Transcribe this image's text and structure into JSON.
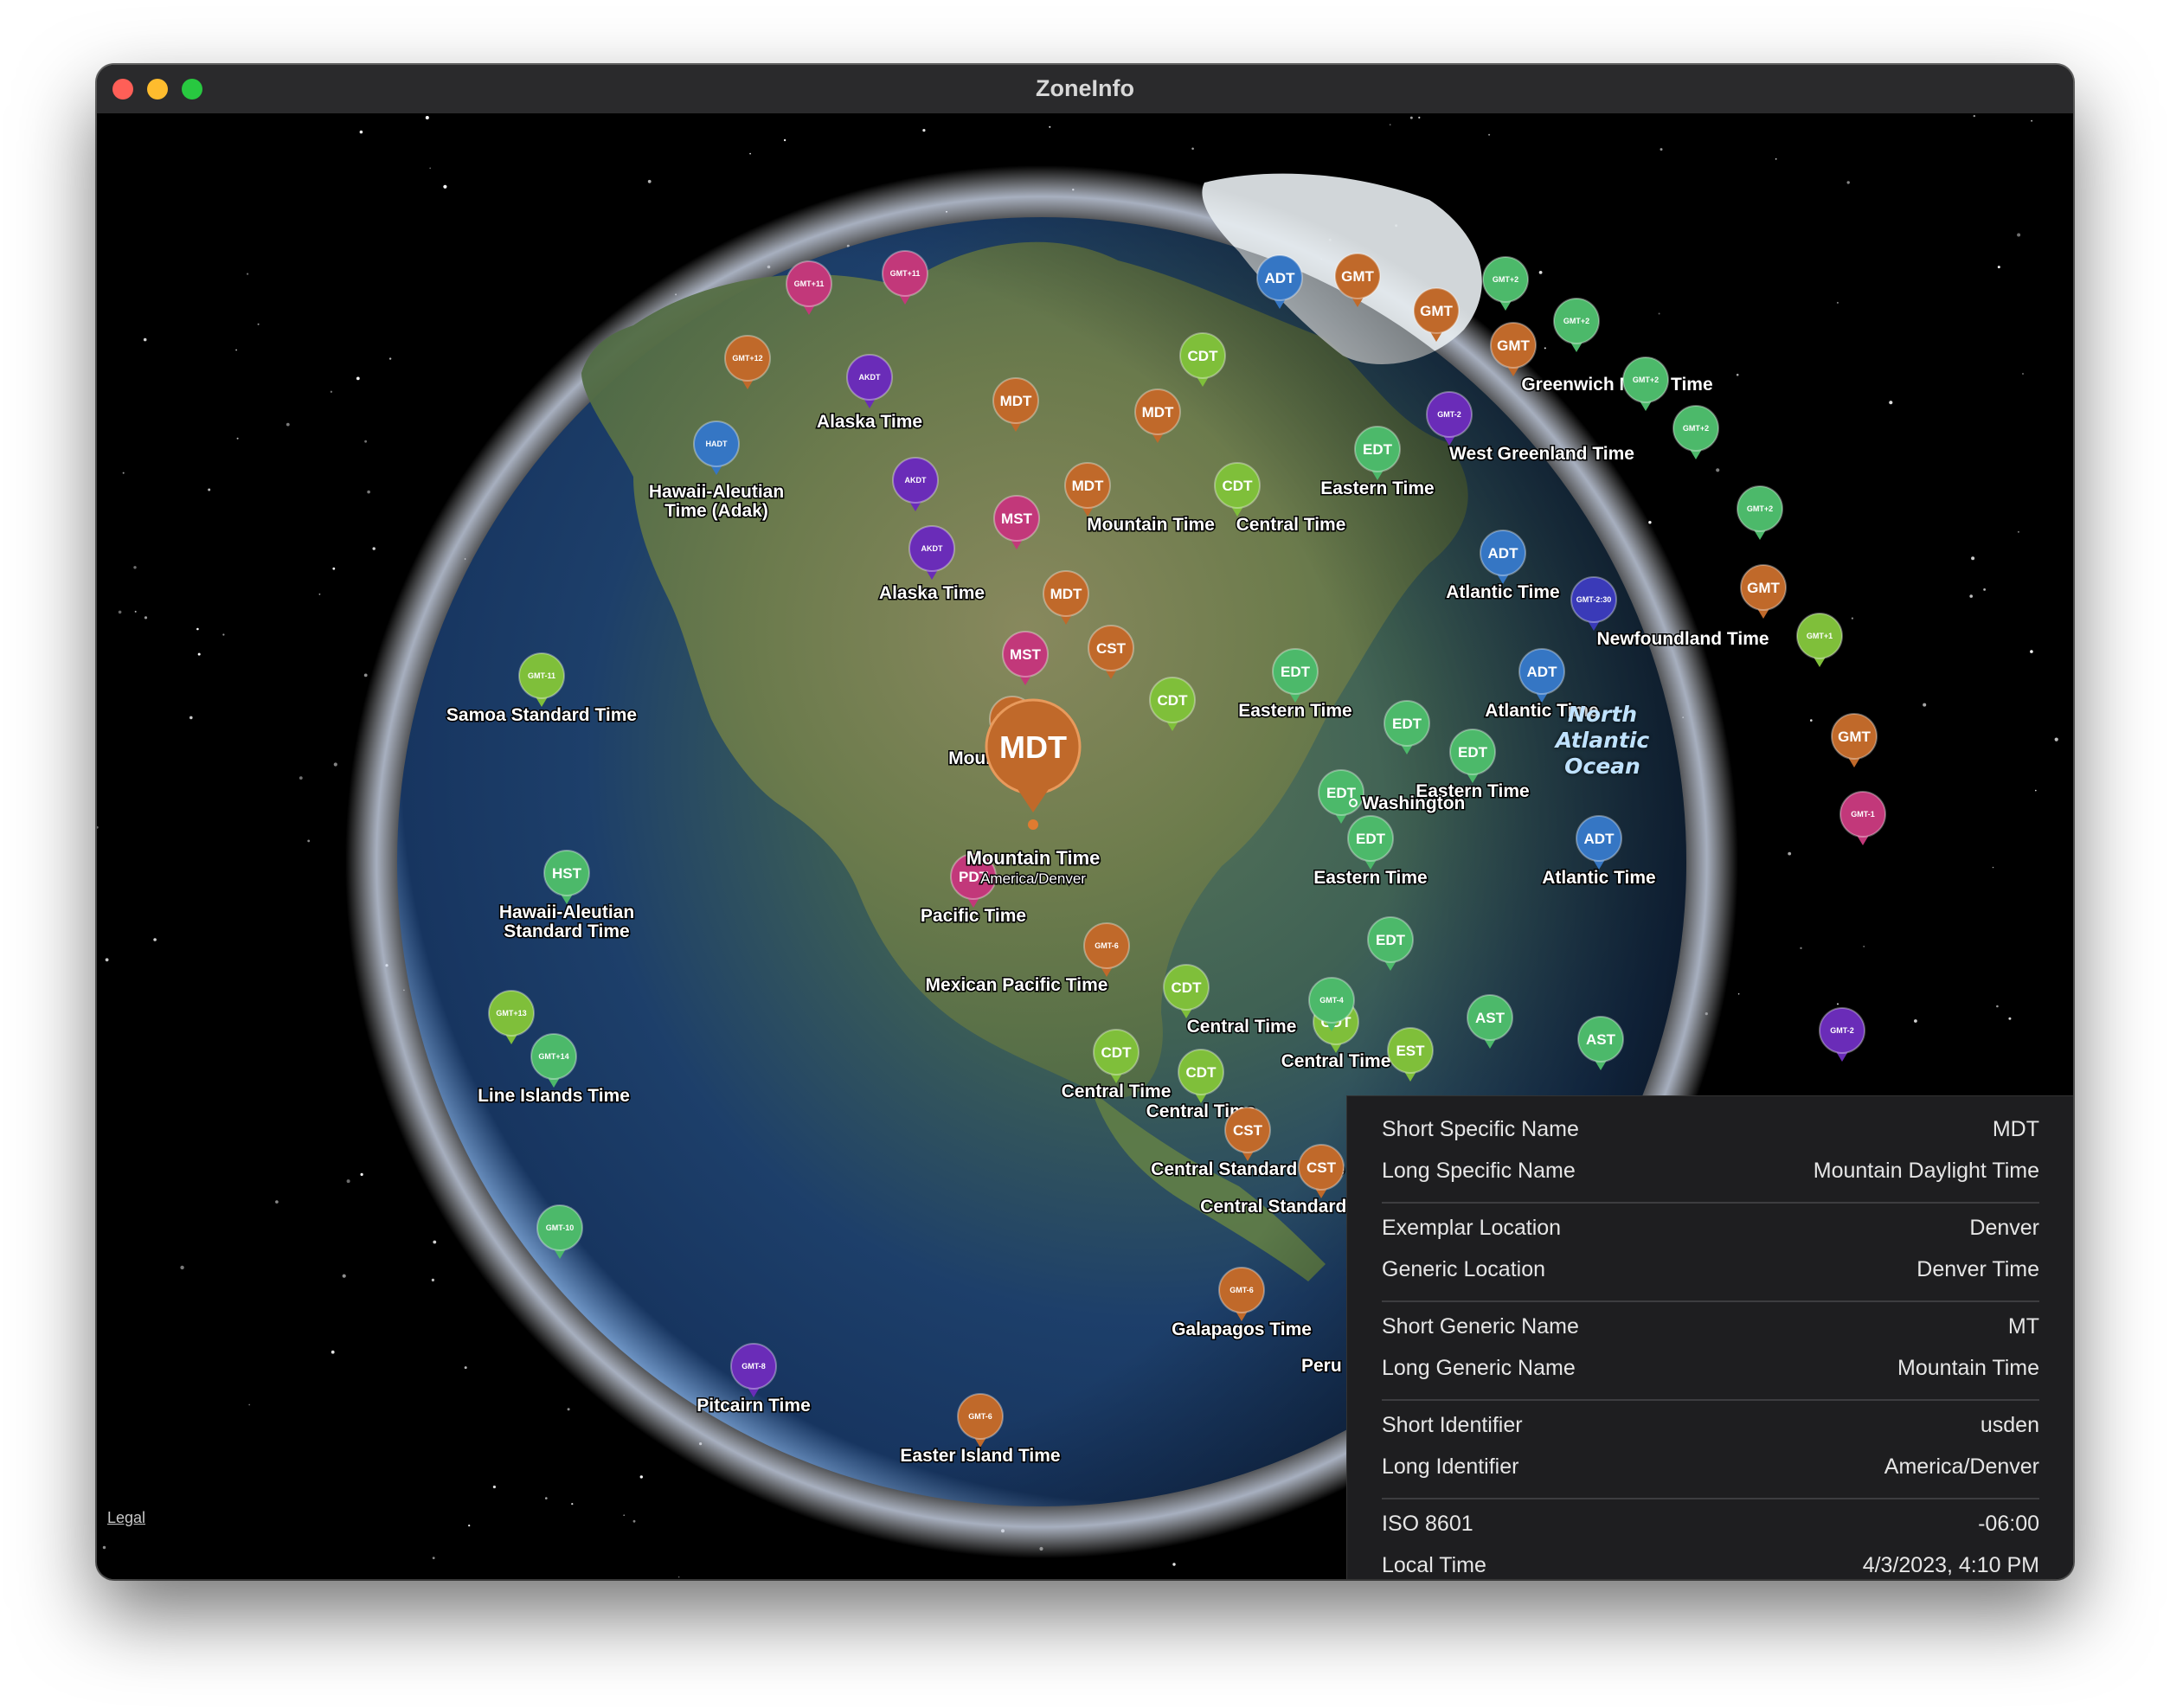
{
  "window": {
    "title": "ZoneInfo"
  },
  "map": {
    "legal_label": "Legal",
    "ocean_label": "North\nAtlantic\nOcean",
    "selected": {
      "abbr": "MDT",
      "title": "Mountain Time",
      "subtitle": "America/Denver"
    },
    "markers": [
      {
        "abbr": "GMT+11",
        "label": "",
        "color": "#c2387a",
        "small": true
      },
      {
        "abbr": "GMT+11",
        "label": "",
        "color": "#c2387a",
        "small": true
      },
      {
        "abbr": "GMT+12",
        "label": "",
        "color": "#c0692a",
        "small": true
      },
      {
        "abbr": "AKDT",
        "label": "Alaska Time",
        "color": "#6a2cb8",
        "small": true
      },
      {
        "abbr": "HADT",
        "label": "Hawaii-Aleutian\nTime (Adak)",
        "color": "#3576c4",
        "small": true
      },
      {
        "abbr": "AKDT",
        "label": "",
        "color": "#6a2cb8",
        "small": true
      },
      {
        "abbr": "AKDT",
        "label": "Alaska Time",
        "color": "#6a2cb8",
        "small": true
      },
      {
        "abbr": "MDT",
        "label": "",
        "color": "#c0692a"
      },
      {
        "abbr": "MDT",
        "label": "",
        "color": "#c0692a"
      },
      {
        "abbr": "MDT",
        "label": "Mountain Time",
        "color": "#c0692a"
      },
      {
        "abbr": "MST",
        "label": "",
        "color": "#c2387a"
      },
      {
        "abbr": "MDT",
        "label": "",
        "color": "#c0692a"
      },
      {
        "abbr": "MST",
        "label": "",
        "color": "#c2387a"
      },
      {
        "abbr": "CST",
        "label": "",
        "color": "#c0692a"
      },
      {
        "abbr": "CDT",
        "label": "",
        "color": "#7fbf3a"
      },
      {
        "abbr": "CDT",
        "label": "Central Time",
        "color": "#7fbf3a"
      },
      {
        "abbr": "CDT",
        "label": "",
        "color": "#7fbf3a"
      },
      {
        "abbr": "ADT",
        "label": "",
        "color": "#3576c4"
      },
      {
        "abbr": "GMT",
        "label": "",
        "color": "#c0692a"
      },
      {
        "abbr": "GMT",
        "label": "",
        "color": "#c0692a"
      },
      {
        "abbr": "GMT",
        "label": "Greenwich Mean Time",
        "color": "#c0692a"
      },
      {
        "abbr": "GMT+2",
        "label": "",
        "color": "#4cb96a",
        "small": true
      },
      {
        "abbr": "GMT+2",
        "label": "",
        "color": "#4cb96a",
        "small": true
      },
      {
        "abbr": "GMT+2",
        "label": "",
        "color": "#4cb96a",
        "small": true
      },
      {
        "abbr": "GMT+2",
        "label": "",
        "color": "#4cb96a",
        "small": true
      },
      {
        "abbr": "GMT+2",
        "label": "",
        "color": "#4cb96a",
        "small": true
      },
      {
        "abbr": "GMT-2",
        "label": "West Greenland Time",
        "color": "#6a2cb8",
        "small": true
      },
      {
        "abbr": "EDT",
        "label": "Eastern Time",
        "color": "#4cb96a"
      },
      {
        "abbr": "ADT",
        "label": "Atlantic Time",
        "color": "#3576c4"
      },
      {
        "abbr": "GMT-2:30",
        "label": "Newfoundland Time",
        "color": "#3a3ab8",
        "small": true
      },
      {
        "abbr": "GMT",
        "label": "",
        "color": "#c0692a"
      },
      {
        "abbr": "GMT+1",
        "label": "",
        "color": "#7fbf3a",
        "small": true
      },
      {
        "abbr": "ADT",
        "label": "Atlantic Time",
        "color": "#3576c4"
      },
      {
        "abbr": "EDT",
        "label": "Eastern Time",
        "color": "#4cb96a"
      },
      {
        "abbr": "EDT",
        "label": "",
        "color": "#4cb96a"
      },
      {
        "abbr": "EDT",
        "label": "Eastern Time",
        "color": "#4cb96a"
      },
      {
        "abbr": "EDT",
        "label": "",
        "color": "#4cb96a"
      },
      {
        "abbr": "EDT",
        "label": "Eastern Time",
        "color": "#4cb96a"
      },
      {
        "abbr": "ADT",
        "label": "Atlantic Time",
        "color": "#3576c4"
      },
      {
        "abbr": "GMT",
        "label": "",
        "color": "#c0692a"
      },
      {
        "abbr": "GMT-1",
        "label": "",
        "color": "#c2387a",
        "small": true
      },
      {
        "abbr": "GMT-11",
        "label": "Samoa Standard Time",
        "color": "#7fbf3a",
        "small": true
      },
      {
        "abbr": "MDT",
        "label": "Mountain Time",
        "color": "#c0692a"
      },
      {
        "abbr": "HST",
        "label": "Hawaii-Aleutian\nStandard Time",
        "color": "#4cb96a"
      },
      {
        "abbr": "PDT",
        "label": "Pacific Time",
        "color": "#c2387a"
      },
      {
        "abbr": "GMT-6",
        "label": "Mexican Pacific Time",
        "color": "#c0692a",
        "small": true
      },
      {
        "abbr": "CDT",
        "label": "Central Time",
        "color": "#7fbf3a"
      },
      {
        "abbr": "CDT",
        "label": "Central Time",
        "color": "#7fbf3a"
      },
      {
        "abbr": "CDT",
        "label": "Central Time",
        "color": "#7fbf3a"
      },
      {
        "abbr": "CDT",
        "label": "Central Time",
        "color": "#7fbf3a"
      },
      {
        "abbr": "GMT+13",
        "label": "",
        "color": "#7fbf3a",
        "small": true
      },
      {
        "abbr": "GMT+14",
        "label": "Line Islands Time",
        "color": "#4cb96a",
        "small": true
      },
      {
        "abbr": "EDT",
        "label": "",
        "color": "#4cb96a"
      },
      {
        "abbr": "GMT-4",
        "label": "",
        "color": "#4cb96a",
        "small": true
      },
      {
        "abbr": "AST",
        "label": "",
        "color": "#4cb96a"
      },
      {
        "abbr": "EST",
        "label": "",
        "color": "#7fbf3a"
      },
      {
        "abbr": "AST",
        "label": "",
        "color": "#4cb96a"
      },
      {
        "abbr": "GMT-2",
        "label": "",
        "color": "#6a2cb8",
        "small": true
      },
      {
        "abbr": "CST",
        "label": "Central Standard Time",
        "color": "#c0692a"
      },
      {
        "abbr": "CST",
        "label": "Central Standard Time",
        "color": "#c0692a"
      },
      {
        "abbr": "GMT-10",
        "label": "",
        "color": "#4cb96a",
        "small": true
      },
      {
        "abbr": "GMT-6",
        "label": "Galapagos Time",
        "color": "#c0692a",
        "small": true
      },
      {
        "abbr": "GMT-8",
        "label": "Pitcairn Time",
        "color": "#6a2cb8",
        "small": true
      },
      {
        "abbr": "GMT-6",
        "label": "Easter Island Time",
        "color": "#c0692a",
        "small": true
      }
    ],
    "city_labels": [
      "Washington",
      "Peru"
    ]
  },
  "inspector": {
    "rows": [
      {
        "label": "Short Specific Name",
        "value": "MDT"
      },
      {
        "label": "Long Specific Name",
        "value": "Mountain Daylight Time"
      },
      {
        "label": "Exemplar Location",
        "value": "Denver"
      },
      {
        "label": "Generic Location",
        "value": "Denver Time"
      },
      {
        "label": "Short Generic Name",
        "value": "MT"
      },
      {
        "label": "Long Generic Name",
        "value": "Mountain Time"
      },
      {
        "label": "Short Identifier",
        "value": "usden"
      },
      {
        "label": "Long Identifier",
        "value": "America/Denver"
      },
      {
        "label": "ISO 8601",
        "value": "-06:00"
      },
      {
        "label": "Local Time",
        "value": "4/3/2023, 4:10 PM"
      }
    ]
  }
}
